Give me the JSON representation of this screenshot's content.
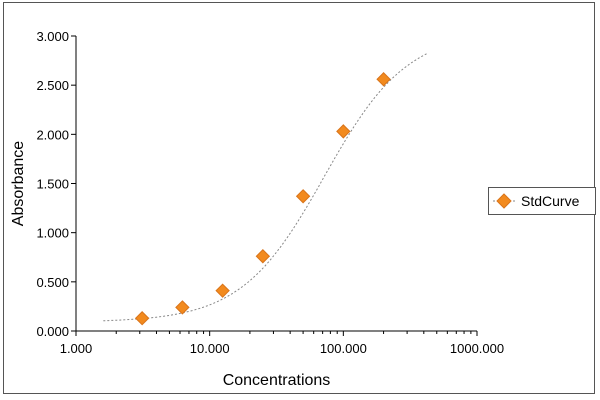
{
  "chart_data": {
    "type": "scatter",
    "xlabel": "Concentrations",
    "ylabel": "Absorbance",
    "xscale": "log",
    "xlim": [
      1,
      1000
    ],
    "ylim": [
      0,
      3
    ],
    "x_ticks": [
      1,
      10,
      100,
      1000
    ],
    "x_tick_labels": [
      "1.000",
      "10.000",
      "100.000",
      "1000.000"
    ],
    "y_ticks": [
      0,
      0.5,
      1,
      1.5,
      2,
      2.5,
      3
    ],
    "y_tick_labels": [
      "0.000",
      "0.500",
      "1.000",
      "1.500",
      "2.000",
      "2.500",
      "3.000"
    ],
    "grid": false,
    "legend": "right",
    "series": [
      {
        "name": "StdCurve",
        "x": [
          3.125,
          6.25,
          12.5,
          25,
          50,
          100,
          200
        ],
        "y": [
          0.13,
          0.24,
          0.41,
          0.76,
          1.37,
          2.03,
          2.56
        ],
        "marker": "diamond",
        "color": "#f28a1e",
        "fit": "4PL",
        "fit_color": "#888888"
      }
    ]
  }
}
